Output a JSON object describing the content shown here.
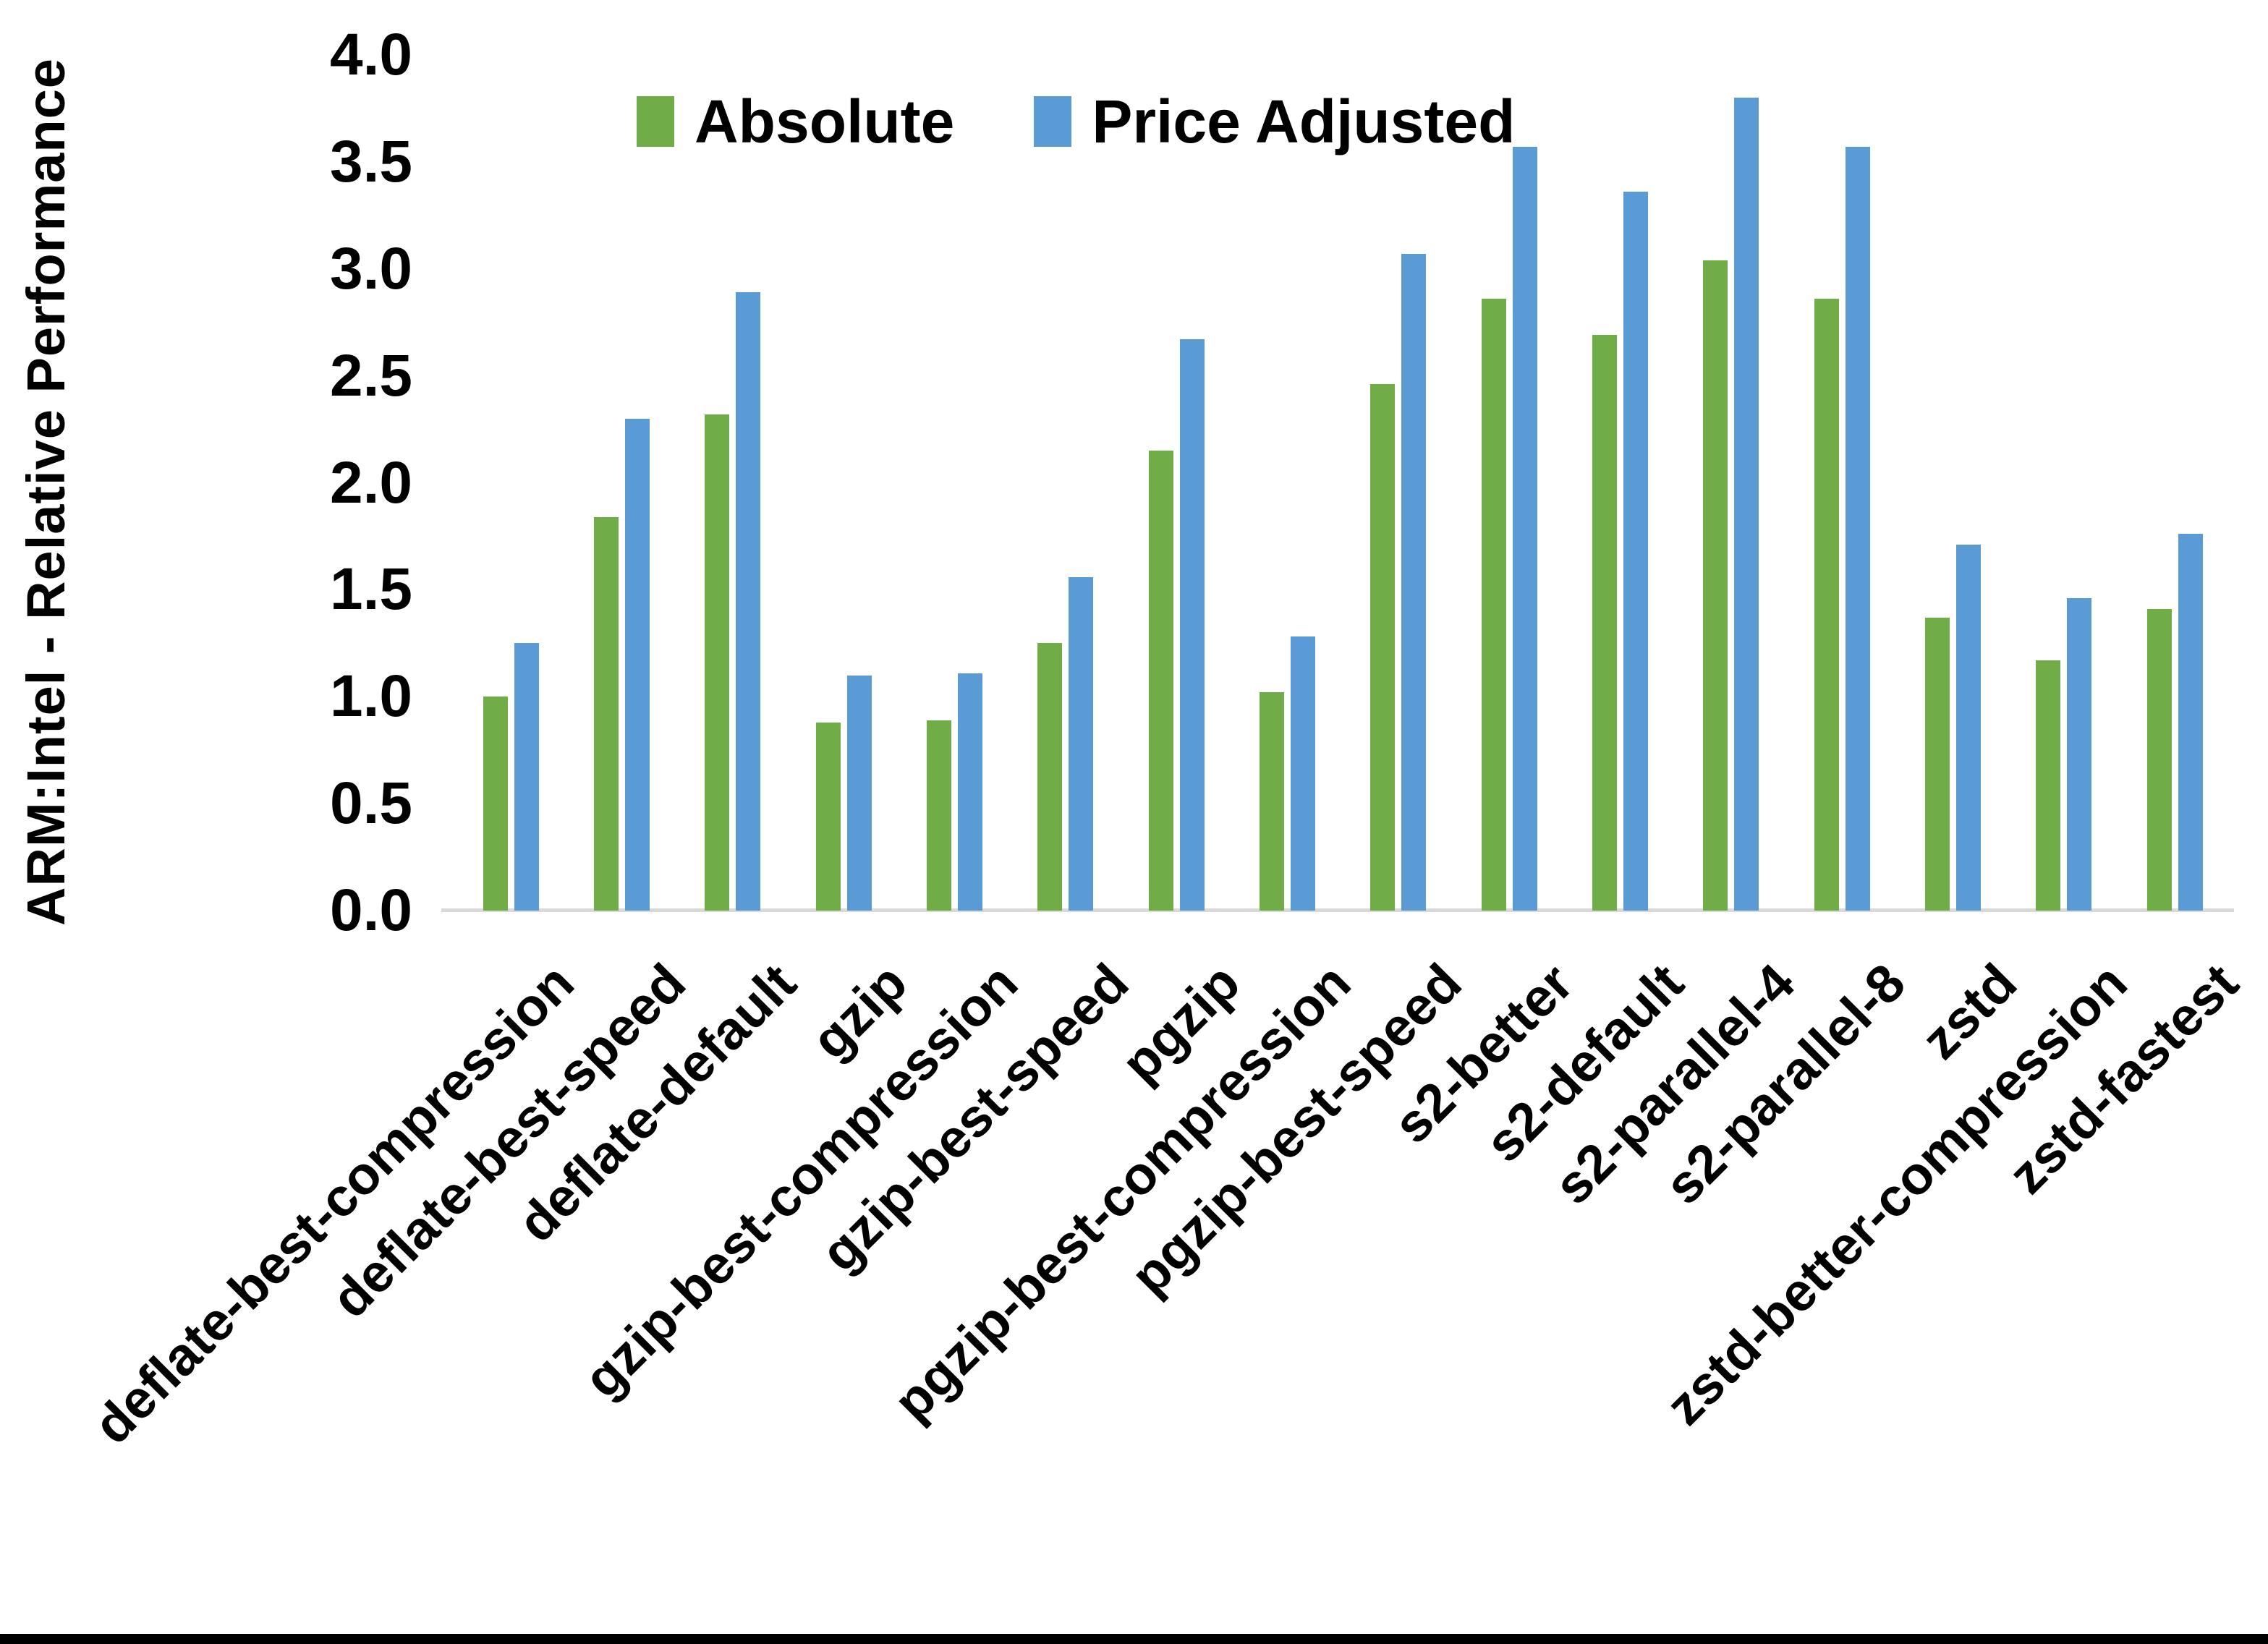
{
  "chart_data": {
    "type": "bar",
    "title": "",
    "ylabel": "ARM:Intel - Relative Performance",
    "xlabel": "",
    "ylim": [
      0.0,
      4.0
    ],
    "y_tick_step": 0.5,
    "y_ticks": [
      "0.0",
      "0.5",
      "1.0",
      "1.5",
      "2.0",
      "2.5",
      "3.0",
      "3.5",
      "4.0"
    ],
    "grid": false,
    "legend_position": "top-center",
    "categories": [
      "deflate-best-compression",
      "deflate-best-speed",
      "deflate-default",
      "gzip",
      "gzip-best-compression",
      "gzip-best-speed",
      "pgzip",
      "pgzip-best-compression",
      "pgzip-best-speed",
      "s2-better",
      "s2-default",
      "s2-parallel-4",
      "s2-parallel-8",
      "zstd",
      "zstd-better-compression",
      "zstd-fastest"
    ],
    "series": [
      {
        "name": "Absolute",
        "color": "#70AD47",
        "values": [
          1.0,
          1.84,
          2.32,
          0.88,
          0.89,
          1.25,
          2.15,
          1.02,
          2.46,
          2.86,
          2.69,
          3.04,
          2.86,
          1.37,
          1.17,
          1.41
        ]
      },
      {
        "name": "Price Adjusted",
        "color": "#5B9BD5",
        "values": [
          1.25,
          2.3,
          2.89,
          1.1,
          1.11,
          1.56,
          2.67,
          1.28,
          3.07,
          3.57,
          3.36,
          3.8,
          3.57,
          1.71,
          1.46,
          1.76
        ]
      }
    ]
  },
  "colors": {
    "axis_line": "#D9D9D9",
    "text": "#000000",
    "frame_bottom": "#000000",
    "background": "#FFFFFF"
  }
}
